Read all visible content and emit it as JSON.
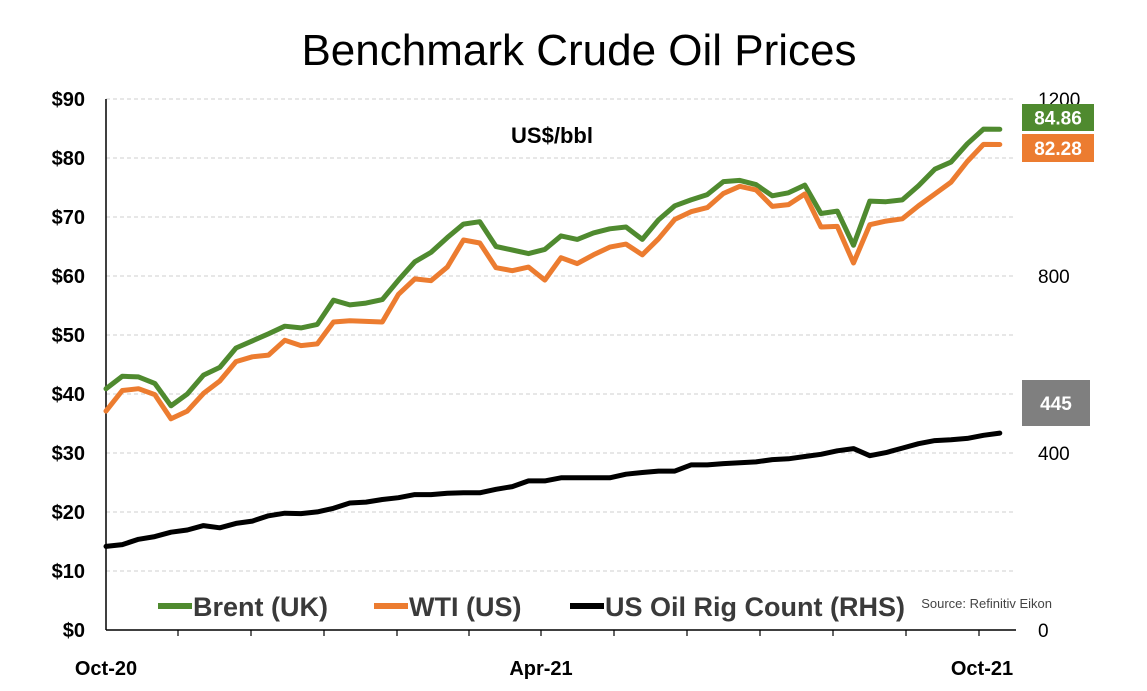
{
  "chart_data": {
    "type": "line",
    "title": "Benchmark Crude Oil Prices",
    "unit_label": "US$/bbl",
    "source": "Source: Refinitiv Eikon",
    "x_ticks": [
      "Oct-20",
      "Apr-21",
      "Oct-21"
    ],
    "y_left": {
      "lim": [
        0,
        90
      ],
      "ticks": [
        "$0",
        "$10",
        "$20",
        "$30",
        "$40",
        "$50",
        "$60",
        "$70",
        "$80",
        "$90"
      ]
    },
    "y_right": {
      "lim": [
        0,
        1200
      ],
      "ticks": [
        "0",
        "400",
        "800",
        "1200"
      ]
    },
    "grid": true,
    "legend_position": "bottom",
    "x": [
      "2020-10-02",
      "2020-10-09",
      "2020-10-16",
      "2020-10-23",
      "2020-10-30",
      "2020-11-06",
      "2020-11-13",
      "2020-11-20",
      "2020-11-27",
      "2020-12-04",
      "2020-12-11",
      "2020-12-18",
      "2020-12-25",
      "2021-01-01",
      "2021-01-08",
      "2021-01-15",
      "2021-01-22",
      "2021-01-29",
      "2021-02-05",
      "2021-02-12",
      "2021-02-19",
      "2021-02-26",
      "2021-03-05",
      "2021-03-12",
      "2021-03-19",
      "2021-03-26",
      "2021-04-02",
      "2021-04-09",
      "2021-04-16",
      "2021-04-23",
      "2021-04-30",
      "2021-05-07",
      "2021-05-14",
      "2021-05-21",
      "2021-05-28",
      "2021-06-04",
      "2021-06-11",
      "2021-06-18",
      "2021-06-25",
      "2021-07-02",
      "2021-07-09",
      "2021-07-16",
      "2021-07-23",
      "2021-07-30",
      "2021-08-06",
      "2021-08-13",
      "2021-08-20",
      "2021-08-27",
      "2021-09-03",
      "2021-09-10",
      "2021-09-17",
      "2021-09-24",
      "2021-10-01",
      "2021-10-08",
      "2021-10-15",
      "2021-10-22"
    ],
    "series": [
      {
        "name": "Brent (UK)",
        "axis": "left",
        "color": "#4f8a2f",
        "end_label": "84.86",
        "values": [
          40.9,
          43.0,
          42.9,
          41.8,
          38.0,
          40.0,
          43.2,
          44.5,
          47.8,
          49.0,
          50.2,
          51.5,
          51.2,
          51.8,
          55.9,
          55.1,
          55.4,
          56.0,
          59.3,
          62.4,
          64.0,
          66.5,
          68.8,
          69.2,
          65.0,
          64.4,
          63.8,
          64.5,
          66.8,
          66.2,
          67.3,
          68.0,
          68.3,
          66.2,
          69.5,
          71.9,
          72.9,
          73.8,
          76.0,
          76.2,
          75.5,
          73.6,
          74.1,
          75.4,
          70.6,
          71.0,
          65.2,
          72.7,
          72.6,
          72.9,
          75.3,
          78.1,
          79.3,
          82.4,
          84.9,
          84.86
        ]
      },
      {
        "name": "WTI (US)",
        "axis": "left",
        "color": "#ec7c30",
        "end_label": "82.28",
        "values": [
          37.1,
          40.6,
          40.9,
          39.9,
          35.8,
          37.1,
          40.1,
          42.2,
          45.5,
          46.3,
          46.6,
          49.1,
          48.2,
          48.5,
          52.2,
          52.4,
          52.3,
          52.2,
          56.9,
          59.5,
          59.2,
          61.5,
          66.1,
          65.6,
          61.4,
          60.9,
          61.5,
          59.3,
          63.1,
          62.1,
          63.6,
          64.9,
          65.4,
          63.6,
          66.3,
          69.6,
          70.9,
          71.6,
          74.0,
          75.2,
          74.6,
          71.8,
          72.1,
          73.9,
          68.3,
          68.4,
          62.2,
          68.7,
          69.3,
          69.7,
          71.9,
          73.9,
          75.9,
          79.4,
          82.3,
          82.28
        ]
      },
      {
        "name": "US Oil Rig Count (RHS)",
        "axis": "right",
        "color": "#000000",
        "end_label": "445",
        "values": [
          189,
          193,
          205,
          211,
          221,
          226,
          236,
          231,
          241,
          246,
          258,
          264,
          263,
          267,
          275,
          287,
          289,
          295,
          299,
          306,
          306,
          309,
          310,
          310,
          318,
          324,
          337,
          337,
          344,
          344,
          344,
          344,
          352,
          356,
          359,
          359,
          373,
          373,
          376,
          378,
          380,
          385,
          387,
          392,
          397,
          405,
          410,
          394,
          401,
          411,
          421,
          428,
          430,
          433,
          440,
          445
        ]
      }
    ]
  }
}
